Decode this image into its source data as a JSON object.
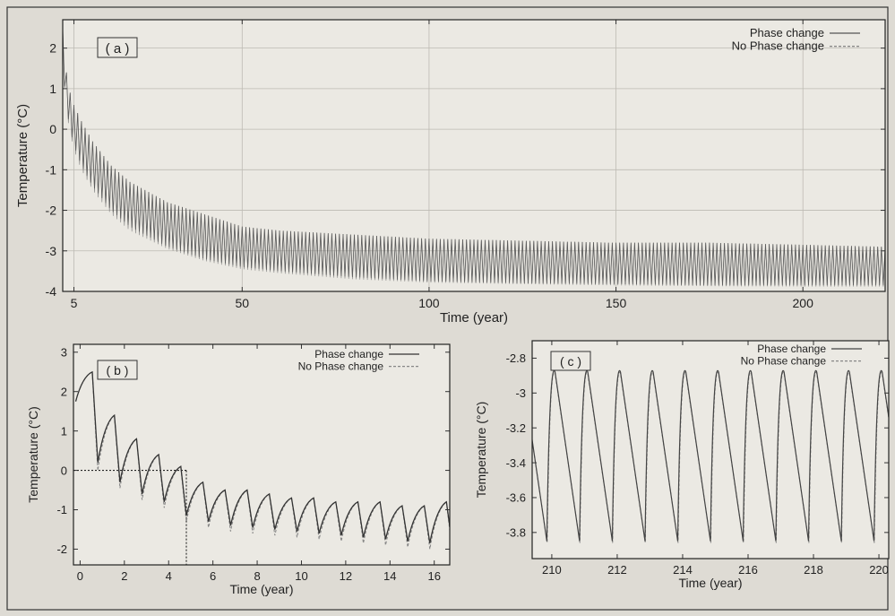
{
  "chart_data": [
    {
      "panel_label": "( a )",
      "type": "line",
      "xlabel": "Time (year)",
      "ylabel": "Temperature (°C)",
      "xlim": [
        2,
        222
      ],
      "ylim": [
        -4,
        2.7
      ],
      "xticks": [
        5,
        50,
        100,
        150,
        200
      ],
      "yticks": [
        -4,
        -3,
        -2,
        -1,
        0,
        1,
        2
      ],
      "grid": true,
      "legend_position": "top-right",
      "legend": [
        "Phase change",
        "No Phase change"
      ],
      "series": [
        {
          "name": "Phase change",
          "color": "#555555",
          "x": [
            2,
            3,
            4,
            5,
            7,
            10,
            15,
            20,
            30,
            40,
            50,
            60,
            80,
            100,
            125,
            150,
            175,
            200,
            222
          ],
          "max": [
            2.5,
            1.4,
            0.9,
            0.6,
            0.2,
            -0.3,
            -0.9,
            -1.3,
            -1.8,
            -2.1,
            -2.4,
            -2.5,
            -2.6,
            -2.7,
            -2.75,
            -2.8,
            -2.8,
            -2.85,
            -2.9
          ],
          "min": [
            1.6,
            0.5,
            0.0,
            -0.4,
            -0.9,
            -1.4,
            -2.0,
            -2.4,
            -2.9,
            -3.2,
            -3.4,
            -3.5,
            -3.65,
            -3.75,
            -3.8,
            -3.82,
            -3.85,
            -3.85,
            -3.85
          ]
        },
        {
          "name": "No Phase change",
          "color": "#777777",
          "x": [
            2,
            3,
            4,
            5,
            7,
            10,
            15,
            20,
            30,
            40,
            50,
            60,
            80,
            100,
            125,
            150,
            175,
            200,
            222
          ],
          "max": [
            2.5,
            1.4,
            0.9,
            0.6,
            0.2,
            -0.3,
            -0.9,
            -1.3,
            -1.8,
            -2.1,
            -2.4,
            -2.5,
            -2.6,
            -2.7,
            -2.75,
            -2.8,
            -2.8,
            -2.85,
            -2.9
          ],
          "min": [
            1.6,
            0.4,
            -0.1,
            -0.5,
            -1.0,
            -1.5,
            -2.1,
            -2.5,
            -2.95,
            -3.25,
            -3.45,
            -3.55,
            -3.7,
            -3.78,
            -3.82,
            -3.85,
            -3.87,
            -3.88,
            -3.88
          ]
        }
      ]
    },
    {
      "panel_label": "( b )",
      "type": "line",
      "xlabel": "Time (year)",
      "ylabel": "Temperature (°C)",
      "xlim": [
        -0.3,
        16.7
      ],
      "ylim": [
        -2.4,
        3.2
      ],
      "xticks": [
        0,
        2,
        4,
        6,
        8,
        10,
        12,
        14,
        16
      ],
      "yticks": [
        -2,
        -1,
        0,
        1,
        2,
        3
      ],
      "grid": false,
      "legend_position": "top-right",
      "legend": [
        "Phase change",
        "No Phase change"
      ],
      "reference_line": {
        "y": 0,
        "x_end": 4.8
      },
      "series": [
        {
          "name": "Phase change",
          "color": "#333333",
          "peaks": [
            2.5,
            1.4,
            0.8,
            0.4,
            0.1,
            -0.3,
            -0.5,
            -0.5,
            -0.6,
            -0.7,
            -0.7,
            -0.8,
            -0.8,
            -0.8,
            -0.9,
            -0.9,
            -0.8
          ],
          "troughs": [
            1.75,
            0.2,
            -0.3,
            -0.6,
            -0.8,
            -1.15,
            -1.3,
            -1.4,
            -1.45,
            -1.5,
            -1.55,
            -1.6,
            -1.65,
            -1.7,
            -1.75,
            -1.8,
            -1.85
          ]
        },
        {
          "name": "No Phase change",
          "color": "#888888",
          "peaks": [
            2.5,
            1.4,
            0.8,
            0.4,
            0.1,
            -0.3,
            -0.5,
            -0.5,
            -0.6,
            -0.7,
            -0.7,
            -0.8,
            -0.8,
            -0.8,
            -0.9,
            -0.9,
            -0.8
          ],
          "troughs": [
            1.75,
            0.0,
            -0.45,
            -0.75,
            -0.95,
            -1.3,
            -1.45,
            -1.55,
            -1.6,
            -1.65,
            -1.7,
            -1.75,
            -1.8,
            -1.85,
            -1.9,
            -1.95,
            -2.0
          ]
        }
      ]
    },
    {
      "panel_label": "( c )",
      "type": "line",
      "xlabel": "Time (year)",
      "ylabel": "Temperature (°C)",
      "xlim": [
        209.4,
        220.3
      ],
      "ylim": [
        -3.95,
        -2.7
      ],
      "xticks": [
        210,
        212,
        214,
        216,
        218,
        220
      ],
      "yticks": [
        -3.8,
        -3.6,
        -3.4,
        -3.2,
        -3,
        -2.8
      ],
      "ytick_labels": [
        "-3.8",
        "-3.6",
        "-3.4",
        "-3.2",
        "-3",
        "-2.8"
      ],
      "grid": false,
      "legend_position": "top-right",
      "legend": [
        "Phase change",
        "No Phase change"
      ],
      "series": [
        {
          "name": "Phase change",
          "color": "#444444",
          "peak": -2.88,
          "trough": -3.85
        },
        {
          "name": "No Phase change",
          "color": "#888888",
          "peak": -2.89,
          "trough": -3.86
        }
      ]
    }
  ]
}
